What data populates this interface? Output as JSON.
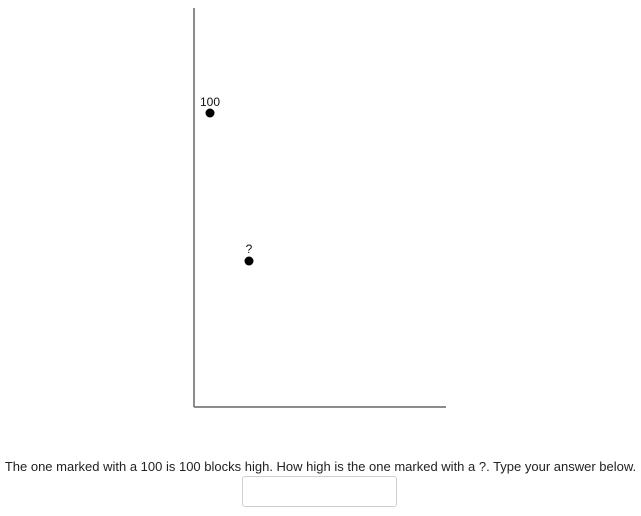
{
  "chart_data": {
    "type": "scatter",
    "points": [
      {
        "label": "100",
        "value": 100
      },
      {
        "label": "?",
        "value": null
      }
    ]
  },
  "prompt": {
    "text": "The one marked with a 100 is 100 blocks high. How high is the one marked with a ?. Type your answer below."
  },
  "answer_input": {
    "value": "",
    "placeholder": ""
  }
}
